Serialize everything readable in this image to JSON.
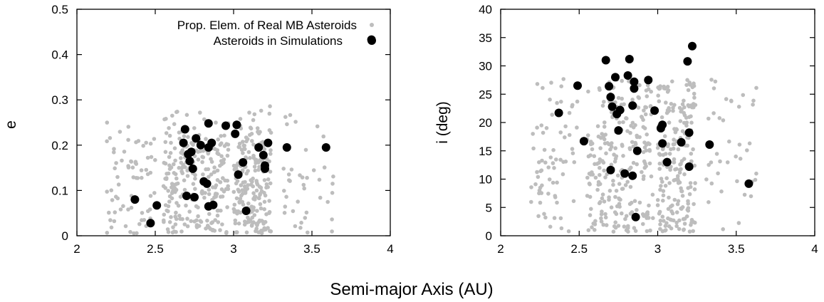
{
  "colors": {
    "background": "#bdbdbd",
    "simulation": "#000000",
    "frame": "#000000"
  },
  "figure": {
    "xlabel": "Semi-major Axis (AU)"
  },
  "chart_data": [
    {
      "type": "scatter",
      "title": "",
      "xlabel": "Semi-major Axis (AU)",
      "ylabel": "e",
      "xlim": [
        2,
        4
      ],
      "ylim": [
        0,
        0.5
      ],
      "xticks": [
        "2",
        "2.5",
        "3",
        "3.5",
        "4"
      ],
      "yticks": [
        "0",
        "0.1",
        "0.2",
        "0.3",
        "0.4",
        "0.5"
      ],
      "grid": false,
      "legend_position": "top-right",
      "series": [
        {
          "name": "Prop. Elem. of Real MB Asteroids",
          "marker": "small-dot",
          "color": "#bdbdbd",
          "x_range": [
            2.18,
            3.64
          ],
          "y_range": [
            0.0,
            0.31
          ],
          "note_points": "dense background population, approximated"
        },
        {
          "name": "Asteroids in Simulations",
          "marker": "large-dot",
          "color": "#000000",
          "points": [
            [
              2.37,
              0.08
            ],
            [
              2.47,
              0.028
            ],
            [
              2.51,
              0.067
            ],
            [
              2.68,
              0.205
            ],
            [
              2.69,
              0.235
            ],
            [
              2.7,
              0.088
            ],
            [
              2.71,
              0.18
            ],
            [
              2.72,
              0.165
            ],
            [
              2.73,
              0.185
            ],
            [
              2.74,
              0.148
            ],
            [
              2.75,
              0.085
            ],
            [
              2.76,
              0.215
            ],
            [
              2.79,
              0.2
            ],
            [
              2.81,
              0.12
            ],
            [
              2.83,
              0.115
            ],
            [
              2.84,
              0.248
            ],
            [
              2.84,
              0.195
            ],
            [
              2.84,
              0.065
            ],
            [
              2.86,
              0.205
            ],
            [
              2.87,
              0.068
            ],
            [
              2.95,
              0.243
            ],
            [
              3.01,
              0.225
            ],
            [
              3.02,
              0.245
            ],
            [
              3.03,
              0.135
            ],
            [
              3.06,
              0.162
            ],
            [
              3.08,
              0.055
            ],
            [
              3.16,
              0.195
            ],
            [
              3.19,
              0.178
            ],
            [
              3.2,
              0.155
            ],
            [
              3.2,
              0.148
            ],
            [
              3.22,
              0.205
            ],
            [
              3.34,
              0.195
            ],
            [
              3.59,
              0.195
            ],
            [
              3.88,
              0.433
            ]
          ]
        }
      ]
    },
    {
      "type": "scatter",
      "title": "",
      "xlabel": "Semi-major Axis (AU)",
      "ylabel": "i (deg)",
      "xlim": [
        2,
        4
      ],
      "ylim": [
        0,
        40
      ],
      "xticks": [
        "2",
        "2.5",
        "3",
        "3.5",
        "4"
      ],
      "yticks": [
        "0",
        "5",
        "10",
        "15",
        "20",
        "25",
        "30",
        "35",
        "40"
      ],
      "grid": false,
      "series": [
        {
          "name": "Prop. Elem. of Real MB Asteroids",
          "marker": "small-dot",
          "color": "#bdbdbd",
          "x_range": [
            2.18,
            3.64
          ],
          "y_range": [
            0.5,
            33
          ],
          "note_points": "dense background population, approximated"
        },
        {
          "name": "Asteroids in Simulations",
          "marker": "large-dot",
          "color": "#000000",
          "points": [
            [
              2.37,
              21.7
            ],
            [
              2.49,
              26.5
            ],
            [
              2.53,
              16.7
            ],
            [
              2.67,
              31.0
            ],
            [
              2.69,
              26.4
            ],
            [
              2.7,
              11.6
            ],
            [
              2.7,
              24.5
            ],
            [
              2.71,
              22.8
            ],
            [
              2.73,
              28.0
            ],
            [
              2.74,
              21.5
            ],
            [
              2.75,
              18.6
            ],
            [
              2.76,
              22.2
            ],
            [
              2.79,
              11.0
            ],
            [
              2.81,
              28.3
            ],
            [
              2.82,
              31.2
            ],
            [
              2.84,
              10.6
            ],
            [
              2.84,
              23.0
            ],
            [
              2.85,
              27.2
            ],
            [
              2.85,
              26.0
            ],
            [
              2.86,
              3.3
            ],
            [
              2.87,
              15.0
            ],
            [
              2.94,
              27.5
            ],
            [
              2.98,
              22.1
            ],
            [
              3.02,
              19.0
            ],
            [
              3.03,
              19.6
            ],
            [
              3.03,
              16.3
            ],
            [
              3.06,
              13.0
            ],
            [
              3.15,
              16.5
            ],
            [
              3.19,
              30.8
            ],
            [
              3.2,
              18.2
            ],
            [
              3.2,
              12.2
            ],
            [
              3.22,
              33.5
            ],
            [
              3.33,
              16.1
            ],
            [
              3.58,
              9.2
            ]
          ]
        }
      ]
    }
  ]
}
